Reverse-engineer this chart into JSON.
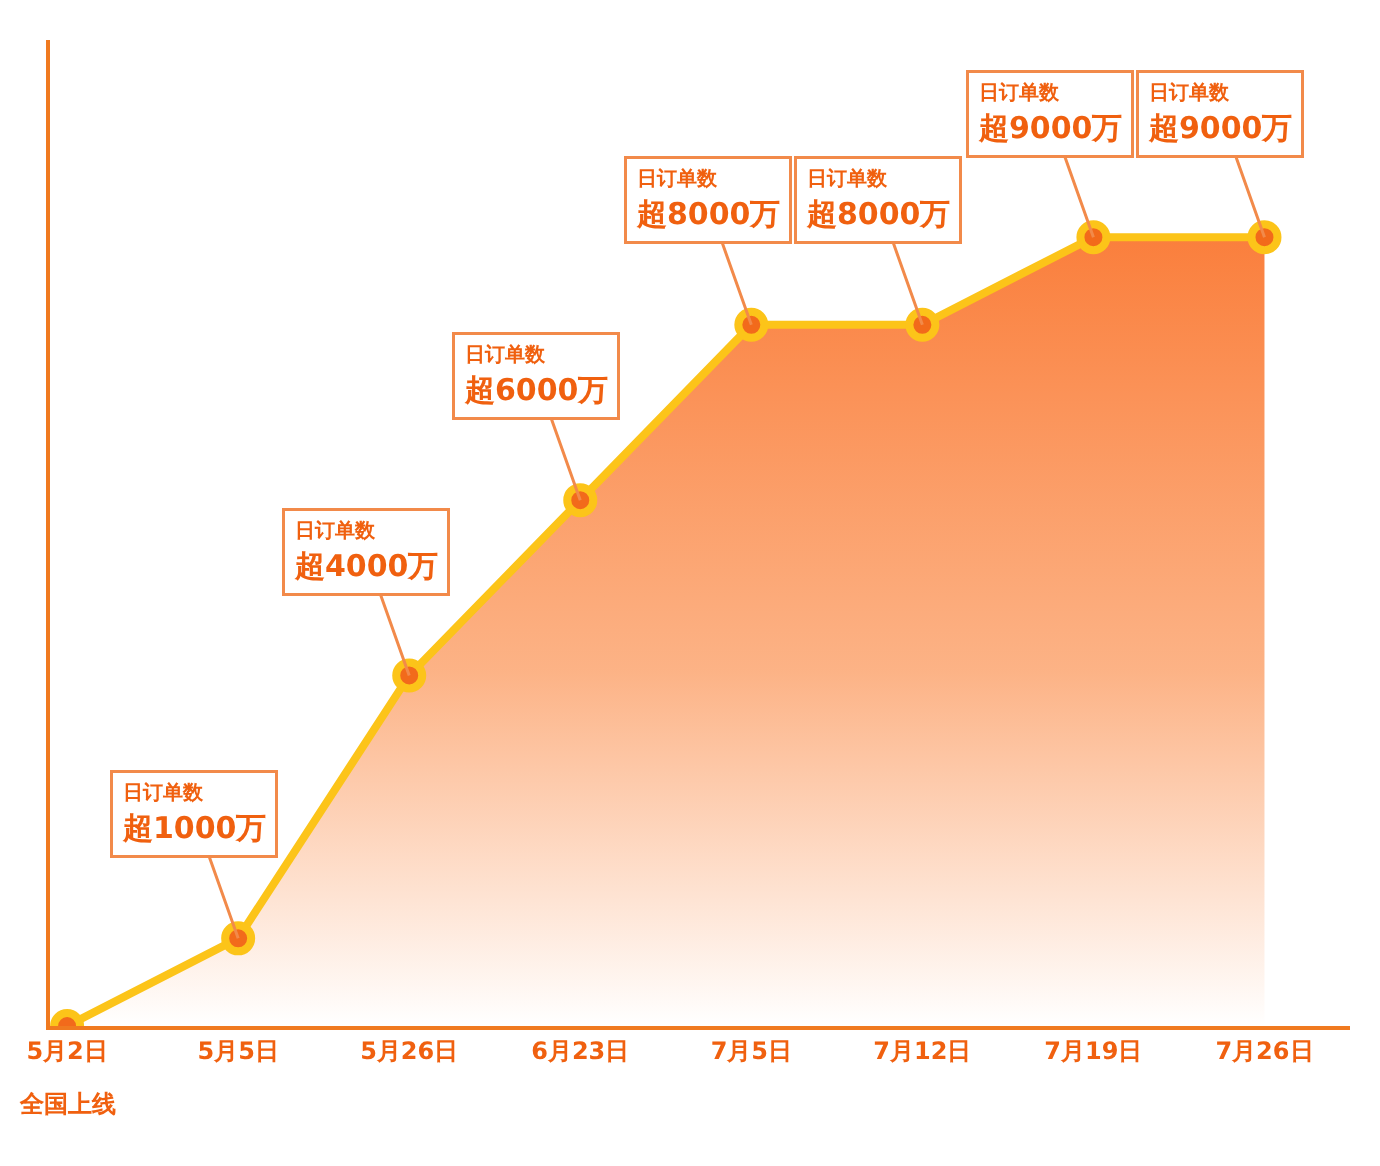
{
  "chart_data": {
    "type": "area",
    "tick_labels": "x",
    "categories": [
      "5月2日",
      "5月5日",
      "5月26日",
      "6月23日",
      "7月5日",
      "7月12日",
      "7月19日",
      "7月26日"
    ],
    "series": [
      {
        "color": "#fcc419",
        "values": [
          0,
          1000,
          4000,
          6000,
          8000,
          8000,
          9000,
          9000
        ],
        "value_labels": [
          null,
          "日订单数超1000万",
          "日订单数超4000万",
          "日订单数超6000万",
          "日订单数超8000万",
          "日订单数超8000万",
          "日订单数超9000万",
          "日订单数超9000万"
        ]
      }
    ],
    "annotations": [
      "全国上线"
    ],
    "marker": "circle",
    "grid": false
  }
}
